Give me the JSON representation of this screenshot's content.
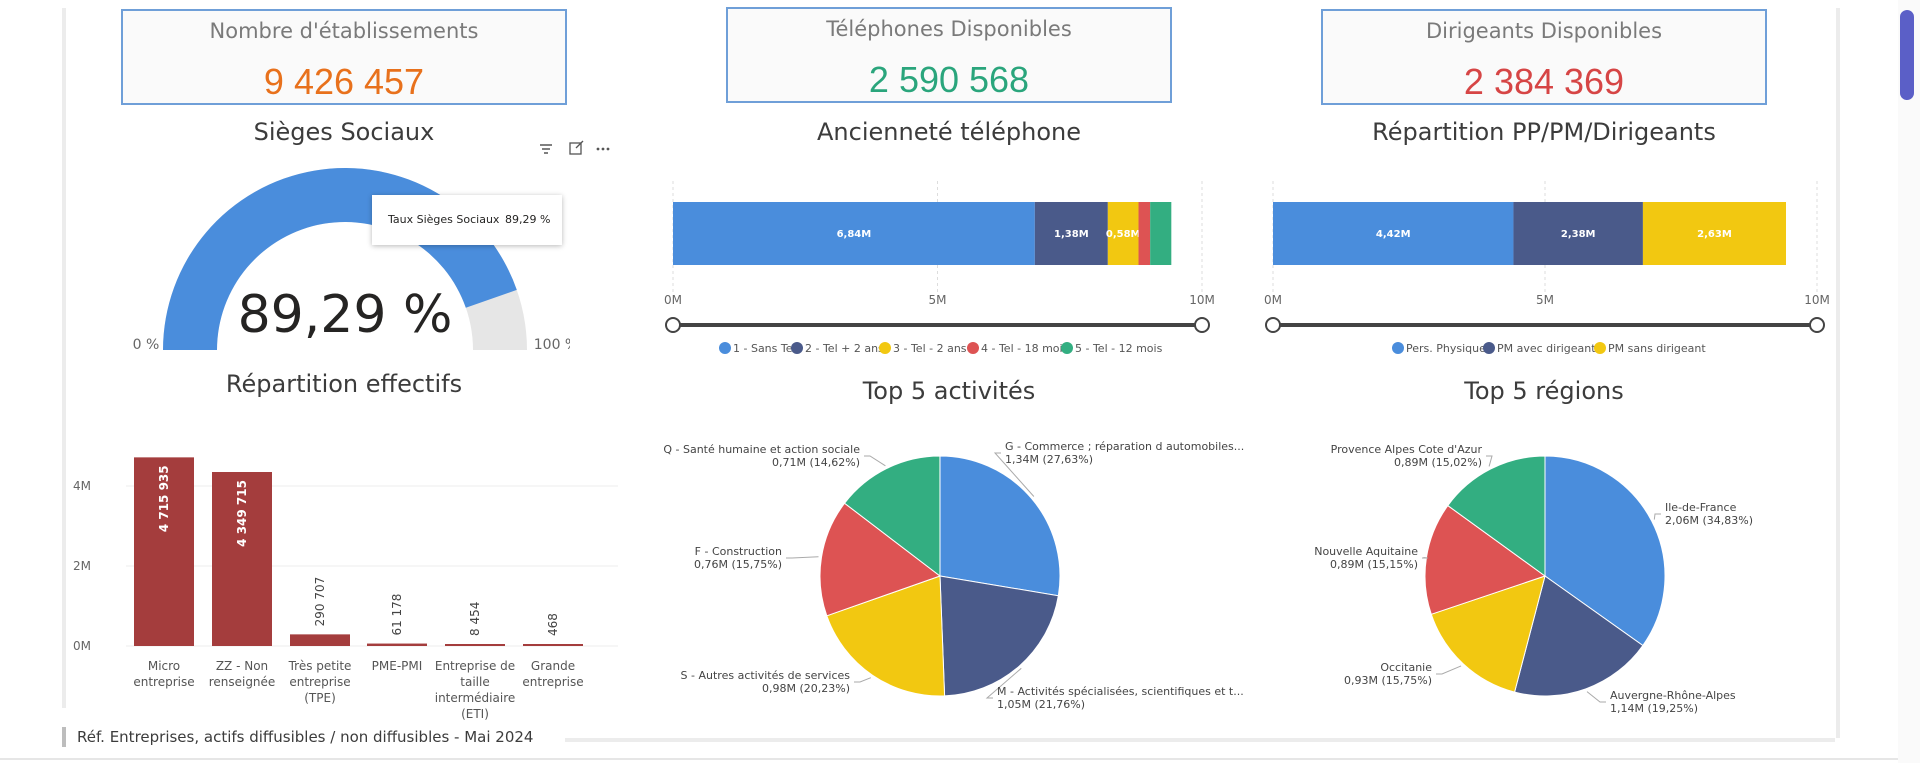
{
  "kpis": [
    {
      "title": "Nombre d'établissements",
      "value": "9 426 457",
      "color": "#e8711c"
    },
    {
      "title": "Téléphones Disponibles",
      "value": "2 590 568",
      "color": "#2aa57c"
    },
    {
      "title": "Dirigeants Disponibles",
      "value": "2 384 369",
      "color": "#d64545"
    }
  ],
  "footer": "Réf. Entreprises, actifs diffusibles / non diffusibles - Mai 2024",
  "visual_header_icons": [
    "filter-icon",
    "focus-mode-icon",
    "more-options-icon"
  ],
  "tooltip": {
    "label": "Taux Sièges Sociaux",
    "value": "89,29 %"
  },
  "chart_data": [
    {
      "type": "gauge",
      "title": "Sièges Sociaux",
      "value": 89.29,
      "value_label": "89,29 %",
      "min_label": "0 %",
      "max_label": "100 %",
      "colors": {
        "fill": "#4a8ddc",
        "track": "#e6e6e6"
      }
    },
    {
      "type": "bar",
      "title": "Répartition effectifs",
      "categories": [
        "Micro entreprise",
        "ZZ - Non renseignée",
        "Très petite entreprise (TPE)",
        "PME-PMI",
        "Entreprise de taille intermédiaire (ETI)",
        "Grande entreprise"
      ],
      "values": [
        4715935,
        4349715,
        290707,
        61178,
        8454,
        468
      ],
      "value_labels": [
        "4 715 935",
        "4 349 715",
        "290 707",
        "61 178",
        "8 454",
        "468"
      ],
      "yticks": [
        "0M",
        "2M",
        "4M"
      ],
      "ylim": [
        0,
        5000000
      ],
      "color": "#a43d3d"
    },
    {
      "type": "bar",
      "orientation": "horizontal-stacked",
      "title": "Ancienneté téléphone",
      "series": [
        {
          "name": "1 - Sans Tel",
          "value": 6.84,
          "label": "6,84M",
          "color": "#4a8ddc"
        },
        {
          "name": "2 - Tel + 2 ans",
          "value": 1.38,
          "label": "1,38M",
          "color": "#4a5a8a"
        },
        {
          "name": "3 - Tel - 2 ans",
          "value": 0.58,
          "label": "0,58M",
          "color": "#f2c811"
        },
        {
          "name": "4 - Tel - 18 mois",
          "value": 0.22,
          "label": "",
          "color": "#dd5353"
        },
        {
          "name": "5 - Tel - 12 mois",
          "value": 0.4,
          "label": "",
          "color": "#33ae81"
        }
      ],
      "xticks": [
        "0M",
        "5M",
        "10M"
      ],
      "xlim": [
        0,
        10
      ]
    },
    {
      "type": "bar",
      "orientation": "horizontal-stacked",
      "title": "Répartition PP/PM/Dirigeants",
      "series": [
        {
          "name": "Pers. Physiques",
          "value": 4.42,
          "label": "4,42M",
          "color": "#4a8ddc"
        },
        {
          "name": "PM avec dirigeant",
          "value": 2.38,
          "label": "2,38M",
          "color": "#4a5a8a"
        },
        {
          "name": "PM sans dirigeant",
          "value": 2.63,
          "label": "2,63M",
          "color": "#f2c811"
        }
      ],
      "xticks": [
        "0M",
        "5M",
        "10M"
      ],
      "xlim": [
        0,
        10
      ]
    },
    {
      "type": "pie",
      "title": "Top 5 activités",
      "slices": [
        {
          "label": "G - Commerce ; réparation d automobiles...",
          "value_label": "1,34M (27,63%)",
          "share": 27.63,
          "color": "#4a8ddc"
        },
        {
          "label": "M - Activités spécialisées, scientifiques et t...",
          "value_label": "1,05M (21,76%)",
          "share": 21.76,
          "color": "#4a5a8a"
        },
        {
          "label": "S - Autres activités de services",
          "value_label": "0,98M (20,23%)",
          "share": 20.23,
          "color": "#f2c811"
        },
        {
          "label": "F - Construction",
          "value_label": "0,76M (15,75%)",
          "share": 15.75,
          "color": "#dd5353"
        },
        {
          "label": "Q - Santé humaine et action sociale",
          "value_label": "0,71M (14,62%)",
          "share": 14.62,
          "color": "#33ae81"
        }
      ]
    },
    {
      "type": "pie",
      "title": "Top 5 régions",
      "slices": [
        {
          "label": "Ile-de-France",
          "value_label": "2,06M (34,83%)",
          "share": 34.83,
          "color": "#4a8ddc"
        },
        {
          "label": "Auvergne-Rhône-Alpes",
          "value_label": "1,14M (19,25%)",
          "share": 19.25,
          "color": "#4a5a8a"
        },
        {
          "label": "Occitanie",
          "value_label": "0,93M (15,75%)",
          "share": 15.75,
          "color": "#f2c811"
        },
        {
          "label": "Nouvelle Aquitaine",
          "value_label": "0,89M (15,15%)",
          "share": 15.15,
          "color": "#dd5353"
        },
        {
          "label": "Provence Alpes Cote d'Azur",
          "value_label": "0,89M (15,02%)",
          "share": 15.02,
          "color": "#33ae81"
        }
      ]
    }
  ]
}
